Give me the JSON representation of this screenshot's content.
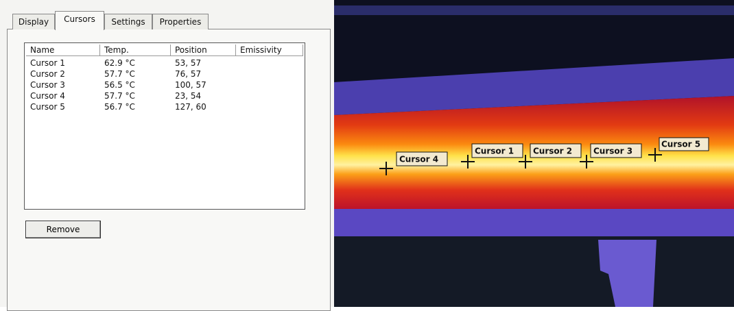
{
  "tabs": [
    "Display",
    "Cursors",
    "Settings",
    "Properties"
  ],
  "table": {
    "columns": [
      "Name",
      "Temp.",
      "Position",
      "Emissivity"
    ],
    "rows": [
      [
        "Cursor 1",
        "62.9 °C",
        "53, 57"
      ],
      [
        "Cursor 2",
        "57.7 °C",
        "76, 57"
      ],
      [
        "Cursor 3",
        "56.5 °C",
        "100, 57"
      ],
      [
        "Cursor 4",
        "57.7 °C",
        "23, 54"
      ],
      [
        "Cursor 5",
        "56.7 °C",
        "127, 60"
      ]
    ]
  },
  "button": "Remove",
  "image": {
    "cursor_labels": [
      "Cursor 4",
      "Cursor 1",
      "Cursor 2",
      "Cursor 3",
      "Cursor 5"
    ]
  }
}
